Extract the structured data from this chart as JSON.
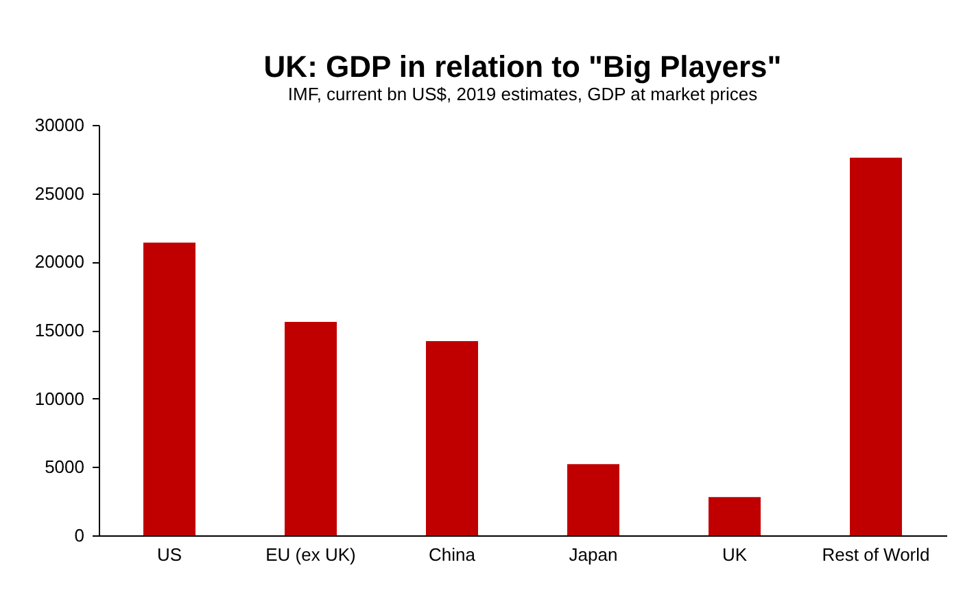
{
  "chart_data": {
    "type": "bar",
    "title": "UK: GDP in relation to \"Big Players\"",
    "subtitle": "IMF, current bn US$, 2019 estimates, GDP at market prices",
    "categories": [
      "US",
      "EU (ex UK)",
      "China",
      "Japan",
      "UK",
      "Rest of World"
    ],
    "values": [
      21400,
      15600,
      14200,
      5200,
      2800,
      27600
    ],
    "color": "#c00000",
    "ylim": [
      0,
      30000
    ],
    "yticks": [
      0,
      5000,
      10000,
      15000,
      20000,
      25000,
      30000
    ],
    "grid": false
  }
}
